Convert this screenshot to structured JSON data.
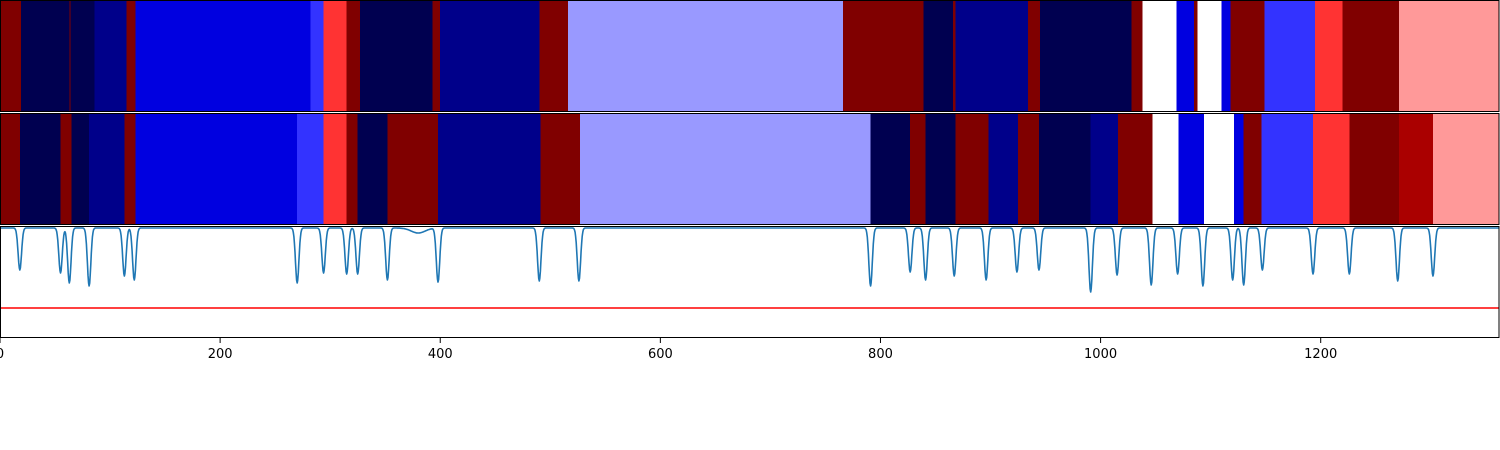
{
  "chart_data": [
    {
      "type": "heatmap",
      "xlim": [
        0,
        1362
      ],
      "colormap": "seismic",
      "segments": [
        {
          "start": 0,
          "end": 19,
          "color": "#800000"
        },
        {
          "start": 19,
          "end": 63,
          "color": "#000050"
        },
        {
          "start": 63,
          "end": 64,
          "color": "#800000"
        },
        {
          "start": 64,
          "end": 86,
          "color": "#000050"
        },
        {
          "start": 86,
          "end": 115,
          "color": "#00008a"
        },
        {
          "start": 115,
          "end": 123,
          "color": "#800000"
        },
        {
          "start": 123,
          "end": 282,
          "color": "#0000e0"
        },
        {
          "start": 282,
          "end": 294,
          "color": "#3333ff"
        },
        {
          "start": 294,
          "end": 315,
          "color": "#ff3333"
        },
        {
          "start": 315,
          "end": 327,
          "color": "#800000"
        },
        {
          "start": 327,
          "end": 393,
          "color": "#000050"
        },
        {
          "start": 393,
          "end": 400,
          "color": "#800000"
        },
        {
          "start": 400,
          "end": 490,
          "color": "#00008a"
        },
        {
          "start": 490,
          "end": 516,
          "color": "#800000"
        },
        {
          "start": 516,
          "end": 766,
          "color": "#9999ff"
        },
        {
          "start": 766,
          "end": 839,
          "color": "#800000"
        },
        {
          "start": 839,
          "end": 866,
          "color": "#000050"
        },
        {
          "start": 866,
          "end": 868,
          "color": "#800000"
        },
        {
          "start": 868,
          "end": 934,
          "color": "#00008a"
        },
        {
          "start": 934,
          "end": 945,
          "color": "#800000"
        },
        {
          "start": 945,
          "end": 1028,
          "color": "#000050"
        },
        {
          "start": 1028,
          "end": 1038,
          "color": "#800000"
        },
        {
          "start": 1038,
          "end": 1069,
          "color": "#ffffff"
        },
        {
          "start": 1069,
          "end": 1085,
          "color": "#0000e0"
        },
        {
          "start": 1085,
          "end": 1088,
          "color": "#800000"
        },
        {
          "start": 1088,
          "end": 1110,
          "color": "#ffffff"
        },
        {
          "start": 1110,
          "end": 1118,
          "color": "#0000e0"
        },
        {
          "start": 1118,
          "end": 1149,
          "color": "#800000"
        },
        {
          "start": 1149,
          "end": 1195,
          "color": "#3333ff"
        },
        {
          "start": 1195,
          "end": 1220,
          "color": "#ff3333"
        },
        {
          "start": 1220,
          "end": 1271,
          "color": "#800000"
        },
        {
          "start": 1271,
          "end": 1362,
          "color": "#ff9999"
        }
      ]
    },
    {
      "type": "heatmap",
      "xlim": [
        0,
        1362
      ],
      "colormap": "seismic",
      "segments": [
        {
          "start": 0,
          "end": 18,
          "color": "#800000"
        },
        {
          "start": 18,
          "end": 55,
          "color": "#000050"
        },
        {
          "start": 55,
          "end": 65,
          "color": "#800000"
        },
        {
          "start": 65,
          "end": 81,
          "color": "#000050"
        },
        {
          "start": 81,
          "end": 113,
          "color": "#00008a"
        },
        {
          "start": 113,
          "end": 123,
          "color": "#800000"
        },
        {
          "start": 123,
          "end": 270,
          "color": "#0000e0"
        },
        {
          "start": 270,
          "end": 294,
          "color": "#3333ff"
        },
        {
          "start": 294,
          "end": 315,
          "color": "#ff3333"
        },
        {
          "start": 315,
          "end": 325,
          "color": "#800000"
        },
        {
          "start": 325,
          "end": 352,
          "color": "#000050"
        },
        {
          "start": 352,
          "end": 398,
          "color": "#800000"
        },
        {
          "start": 398,
          "end": 491,
          "color": "#00008a"
        },
        {
          "start": 491,
          "end": 527,
          "color": "#800000"
        },
        {
          "start": 527,
          "end": 791,
          "color": "#9999ff"
        },
        {
          "start": 791,
          "end": 827,
          "color": "#000050"
        },
        {
          "start": 827,
          "end": 841,
          "color": "#800000"
        },
        {
          "start": 841,
          "end": 868,
          "color": "#000050"
        },
        {
          "start": 868,
          "end": 898,
          "color": "#800000"
        },
        {
          "start": 898,
          "end": 925,
          "color": "#00008a"
        },
        {
          "start": 925,
          "end": 944,
          "color": "#800000"
        },
        {
          "start": 944,
          "end": 991,
          "color": "#000050"
        },
        {
          "start": 991,
          "end": 1016,
          "color": "#00008a"
        },
        {
          "start": 1016,
          "end": 1047,
          "color": "#800000"
        },
        {
          "start": 1047,
          "end": 1071,
          "color": "#ffffff"
        },
        {
          "start": 1071,
          "end": 1094,
          "color": "#0000e0"
        },
        {
          "start": 1094,
          "end": 1121,
          "color": "#ffffff"
        },
        {
          "start": 1121,
          "end": 1130,
          "color": "#0000e0"
        },
        {
          "start": 1130,
          "end": 1146,
          "color": "#800000"
        },
        {
          "start": 1146,
          "end": 1193,
          "color": "#3333ff"
        },
        {
          "start": 1193,
          "end": 1226,
          "color": "#ff3333"
        },
        {
          "start": 1226,
          "end": 1271,
          "color": "#800000"
        },
        {
          "start": 1271,
          "end": 1302,
          "color": "#aa0000"
        },
        {
          "start": 1302,
          "end": 1362,
          "color": "#ff9999"
        }
      ]
    },
    {
      "type": "line",
      "xlim": [
        0,
        1362
      ],
      "xticks": [
        0,
        200,
        400,
        600,
        800,
        1000,
        1200
      ],
      "line_color": "#1f77b4",
      "threshold": {
        "y": -0.8,
        "color": "#ff0000"
      },
      "ylim": [
        -1.1,
        0.02
      ],
      "baseline": 0,
      "dips": [
        {
          "x": 18,
          "depth": 0.42
        },
        {
          "x": 55,
          "depth": 0.45
        },
        {
          "x": 63,
          "depth": 0.55
        },
        {
          "x": 81,
          "depth": 0.58
        },
        {
          "x": 113,
          "depth": 0.48
        },
        {
          "x": 122,
          "depth": 0.52
        },
        {
          "x": 270,
          "depth": 0.55
        },
        {
          "x": 294,
          "depth": 0.45
        },
        {
          "x": 315,
          "depth": 0.46
        },
        {
          "x": 325,
          "depth": 0.46
        },
        {
          "x": 352,
          "depth": 0.52
        },
        {
          "x": 380,
          "depth": 0.05
        },
        {
          "x": 398,
          "depth": 0.54
        },
        {
          "x": 490,
          "depth": 0.53
        },
        {
          "x": 526,
          "depth": 0.53
        },
        {
          "x": 791,
          "depth": 0.58
        },
        {
          "x": 827,
          "depth": 0.44
        },
        {
          "x": 841,
          "depth": 0.52
        },
        {
          "x": 867,
          "depth": 0.48
        },
        {
          "x": 896,
          "depth": 0.52
        },
        {
          "x": 924,
          "depth": 0.44
        },
        {
          "x": 944,
          "depth": 0.42
        },
        {
          "x": 991,
          "depth": 0.64
        },
        {
          "x": 1015,
          "depth": 0.47
        },
        {
          "x": 1046,
          "depth": 0.57
        },
        {
          "x": 1070,
          "depth": 0.46
        },
        {
          "x": 1093,
          "depth": 0.58
        },
        {
          "x": 1120,
          "depth": 0.52
        },
        {
          "x": 1130,
          "depth": 0.57
        },
        {
          "x": 1147,
          "depth": 0.42
        },
        {
          "x": 1193,
          "depth": 0.46
        },
        {
          "x": 1226,
          "depth": 0.46
        },
        {
          "x": 1270,
          "depth": 0.53
        },
        {
          "x": 1302,
          "depth": 0.48
        }
      ]
    }
  ]
}
